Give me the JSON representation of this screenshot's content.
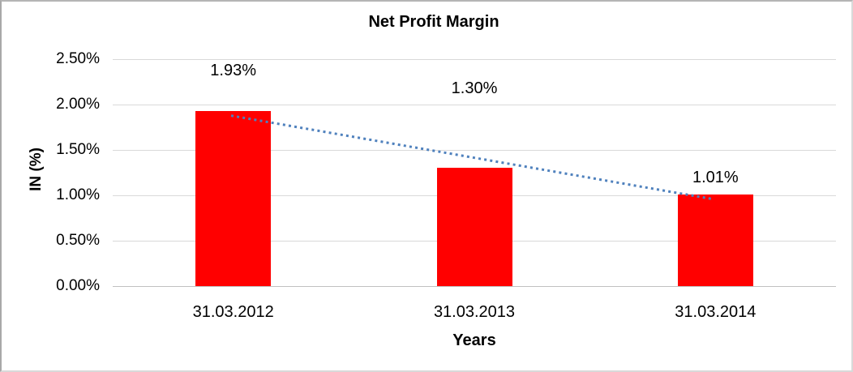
{
  "chart_data": {
    "type": "bar",
    "title": "Net Profit Margin",
    "xlabel": "Years",
    "ylabel": "IN (%)",
    "categories": [
      "31.03.2012",
      "31.03.2013",
      "31.03.2014"
    ],
    "values": [
      1.93,
      1.3,
      1.01
    ],
    "data_labels": [
      "1.93%",
      "1.30%",
      "1.01%"
    ],
    "y_ticks": [
      "2.50%",
      "2.00%",
      "1.50%",
      "1.00%",
      "0.50%",
      "0.00%"
    ],
    "ylim": [
      0,
      2.5
    ],
    "grid": true,
    "legend_position": "none",
    "bar_color": "#ff0000",
    "gridline_color": "#d9d9d9",
    "trendline": {
      "type": "linear",
      "style": "dotted",
      "color": "#4f81bd"
    }
  }
}
